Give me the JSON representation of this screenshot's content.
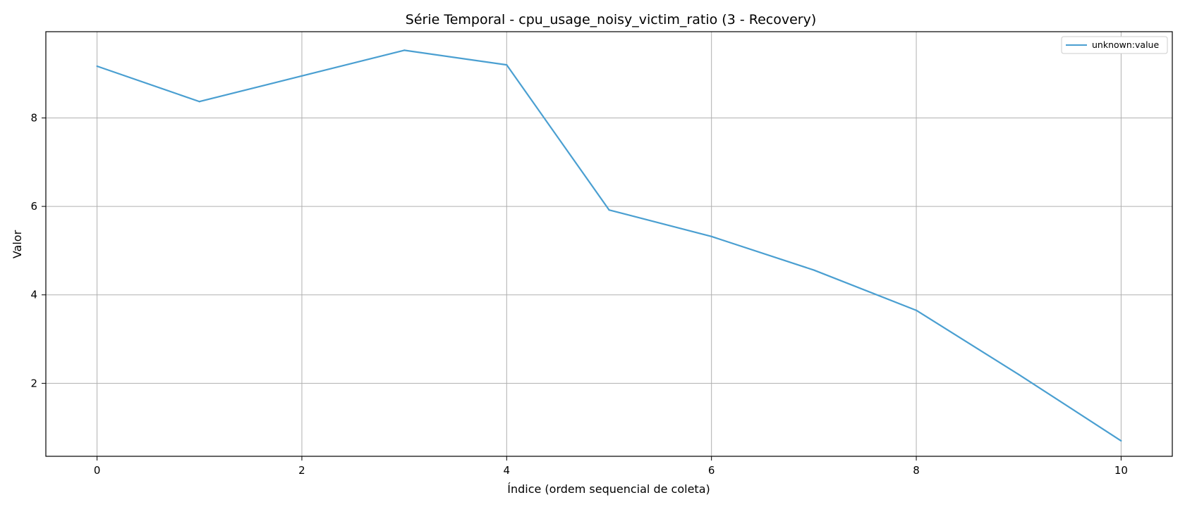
{
  "chart_data": {
    "type": "line",
    "title": "Série Temporal - cpu_usage_noisy_victim_ratio (3 - Recovery)",
    "xlabel": "Índice (ordem sequencial de coleta)",
    "ylabel": "Valor",
    "xlim": [
      -0.5,
      10.5
    ],
    "ylim": [
      0.35,
      9.95
    ],
    "xticks": [
      0,
      2,
      4,
      6,
      8,
      10
    ],
    "yticks": [
      2,
      4,
      6,
      8
    ],
    "grid": true,
    "legend_position": "top-right",
    "series": [
      {
        "name": "unknown:value",
        "color": "#4a9fd1",
        "x": [
          0,
          1,
          2,
          3,
          4,
          5,
          6,
          7,
          8,
          9,
          10
        ],
        "y": [
          9.17,
          8.37,
          8.95,
          9.53,
          9.2,
          5.92,
          5.32,
          4.56,
          3.65,
          2.2,
          0.7
        ]
      }
    ]
  }
}
